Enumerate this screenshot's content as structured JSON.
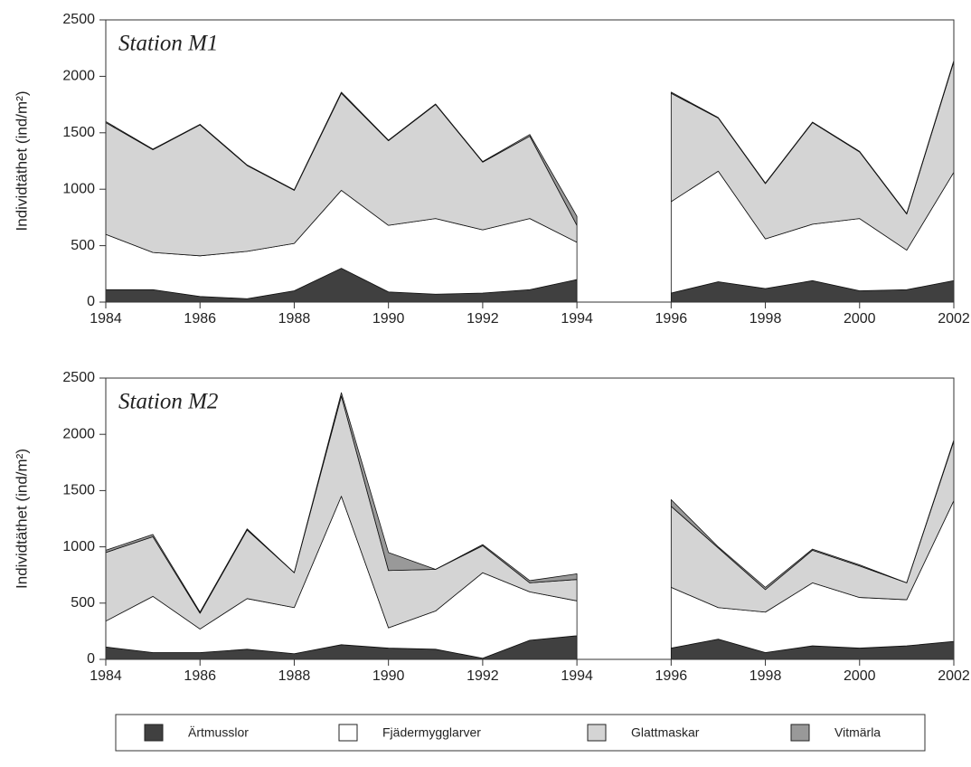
{
  "chart_data": [
    {
      "type": "area",
      "title": "Station M1",
      "ylabel": "Individtäthet (ind/m²)",
      "x": [
        1984,
        1985,
        1986,
        1987,
        1988,
        1989,
        1990,
        1991,
        1992,
        1993,
        1994,
        1995,
        1996,
        1997,
        1998,
        1999,
        2000,
        2001,
        2002
      ],
      "xlim": [
        1984,
        2002
      ],
      "xticks": [
        1984,
        1986,
        1988,
        1990,
        1992,
        1994,
        1996,
        1998,
        2000,
        2002
      ],
      "ylim": [
        0,
        2500
      ],
      "yticks": [
        0,
        500,
        1000,
        1500,
        2000,
        2500
      ],
      "series": [
        {
          "name": "Ärtmusslor",
          "color": "#404040",
          "values": [
            110,
            110,
            50,
            30,
            100,
            300,
            90,
            70,
            80,
            110,
            200,
            null,
            80,
            180,
            120,
            190,
            100,
            110,
            190
          ]
        },
        {
          "name": "Fjädermygglarver",
          "color": "#ffffff",
          "values": [
            490,
            330,
            360,
            420,
            420,
            690,
            590,
            670,
            560,
            630,
            330,
            null,
            810,
            980,
            440,
            500,
            640,
            350,
            960
          ]
        },
        {
          "name": "Glattmaskar",
          "color": "#d4d4d4",
          "values": [
            990,
            910,
            1160,
            760,
            470,
            860,
            750,
            1010,
            600,
            730,
            150,
            null,
            960,
            470,
            490,
            900,
            590,
            320,
            980
          ]
        },
        {
          "name": "Vitmärla",
          "color": "#999999",
          "values": [
            10,
            5,
            5,
            5,
            5,
            10,
            5,
            5,
            5,
            15,
            80,
            null,
            10,
            5,
            5,
            5,
            5,
            5,
            10
          ]
        }
      ]
    },
    {
      "type": "area",
      "title": "Station M2",
      "ylabel": "Individtäthet (ind/m²)",
      "x": [
        1984,
        1985,
        1986,
        1987,
        1988,
        1989,
        1990,
        1991,
        1992,
        1993,
        1994,
        1995,
        1996,
        1997,
        1998,
        1999,
        2000,
        2001,
        2002
      ],
      "xlim": [
        1984,
        2002
      ],
      "xticks": [
        1984,
        1986,
        1988,
        1990,
        1992,
        1994,
        1996,
        1998,
        2000,
        2002
      ],
      "ylim": [
        0,
        2500
      ],
      "yticks": [
        0,
        500,
        1000,
        1500,
        2000,
        2500
      ],
      "series": [
        {
          "color": "#404040",
          "values": [
            110,
            60,
            60,
            90,
            50,
            130,
            100,
            90,
            10,
            170,
            210,
            null,
            100,
            180,
            60,
            120,
            100,
            120,
            160
          ]
        },
        {
          "color": "#ffffff",
          "values": [
            230,
            500,
            210,
            450,
            410,
            1320,
            180,
            340,
            760,
            430,
            310,
            null,
            540,
            280,
            360,
            560,
            450,
            410,
            1250
          ]
        },
        {
          "color": "#d4d4d4",
          "values": [
            610,
            530,
            140,
            610,
            310,
            890,
            510,
            370,
            240,
            80,
            190,
            null,
            720,
            530,
            200,
            290,
            280,
            150,
            530
          ]
        },
        {
          "color": "#999999",
          "values": [
            20,
            20,
            10,
            10,
            0,
            30,
            160,
            0,
            10,
            20,
            50,
            null,
            60,
            10,
            20,
            10,
            10,
            0,
            10
          ]
        }
      ]
    }
  ]
}
